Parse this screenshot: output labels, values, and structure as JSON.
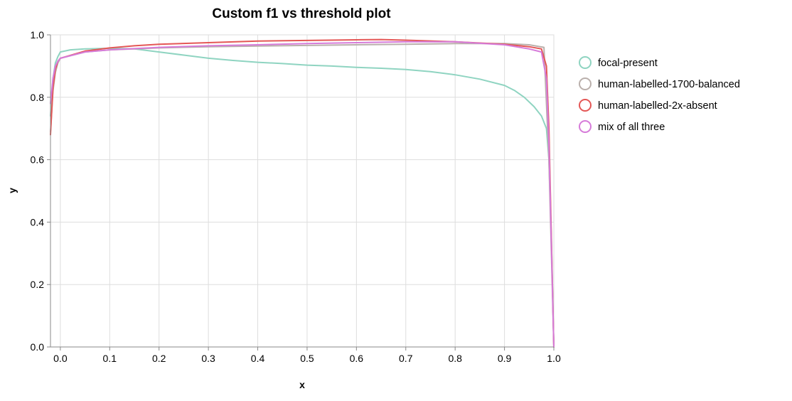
{
  "chart_data": {
    "type": "line",
    "title": "Custom f1 vs threshold plot",
    "xlabel": "x",
    "ylabel": "y",
    "xlim": [
      -0.02,
      1.0
    ],
    "ylim": [
      0.0,
      1.0
    ],
    "x_ticks": [
      "0.0",
      "0.1",
      "0.2",
      "0.3",
      "0.4",
      "0.5",
      "0.6",
      "0.7",
      "0.8",
      "0.9",
      "1.0"
    ],
    "y_ticks": [
      "0.0",
      "0.2",
      "0.4",
      "0.6",
      "0.8",
      "1.0"
    ],
    "grid": true,
    "legend_position": "right",
    "series": [
      {
        "name": "focal-present",
        "color": "#8fd4c1",
        "x": [
          -0.02,
          -0.015,
          -0.01,
          -0.005,
          0.0,
          0.02,
          0.05,
          0.1,
          0.15,
          0.2,
          0.25,
          0.3,
          0.35,
          0.4,
          0.45,
          0.5,
          0.55,
          0.6,
          0.65,
          0.7,
          0.75,
          0.8,
          0.85,
          0.9,
          0.92,
          0.94,
          0.96,
          0.975,
          0.985,
          0.99,
          0.995,
          1.0
        ],
        "y": [
          0.74,
          0.86,
          0.91,
          0.93,
          0.945,
          0.952,
          0.955,
          0.957,
          0.955,
          0.945,
          0.935,
          0.925,
          0.918,
          0.912,
          0.908,
          0.903,
          0.9,
          0.896,
          0.893,
          0.889,
          0.882,
          0.872,
          0.858,
          0.838,
          0.822,
          0.8,
          0.77,
          0.74,
          0.7,
          0.6,
          0.35,
          0.0
        ]
      },
      {
        "name": "human-labelled-1700-balanced",
        "color": "#bab0ac",
        "x": [
          -0.02,
          -0.015,
          -0.01,
          -0.005,
          0.0,
          0.05,
          0.1,
          0.2,
          0.3,
          0.4,
          0.5,
          0.6,
          0.7,
          0.8,
          0.9,
          0.95,
          0.98,
          0.99,
          1.0
        ],
        "y": [
          0.69,
          0.82,
          0.88,
          0.91,
          0.925,
          0.945,
          0.952,
          0.958,
          0.962,
          0.964,
          0.966,
          0.968,
          0.97,
          0.972,
          0.972,
          0.968,
          0.96,
          0.6,
          0.0
        ]
      },
      {
        "name": "human-labelled-2x-absent",
        "color": "#e45756",
        "x": [
          -0.02,
          -0.015,
          -0.01,
          -0.005,
          0.0,
          0.05,
          0.1,
          0.15,
          0.2,
          0.3,
          0.4,
          0.5,
          0.6,
          0.65,
          0.7,
          0.8,
          0.9,
          0.95,
          0.975,
          0.985,
          0.99,
          1.0
        ],
        "y": [
          0.68,
          0.83,
          0.89,
          0.915,
          0.925,
          0.948,
          0.958,
          0.965,
          0.97,
          0.975,
          0.98,
          0.982,
          0.984,
          0.985,
          0.983,
          0.978,
          0.97,
          0.962,
          0.955,
          0.9,
          0.7,
          0.0
        ]
      },
      {
        "name": "mix of all three",
        "color": "#d67bd9",
        "x": [
          -0.02,
          -0.015,
          -0.01,
          -0.005,
          0.0,
          0.05,
          0.1,
          0.2,
          0.3,
          0.4,
          0.5,
          0.6,
          0.7,
          0.8,
          0.9,
          0.95,
          0.975,
          0.985,
          0.99,
          1.0
        ],
        "y": [
          0.78,
          0.86,
          0.9,
          0.915,
          0.925,
          0.945,
          0.952,
          0.96,
          0.965,
          0.968,
          0.972,
          0.975,
          0.978,
          0.978,
          0.968,
          0.955,
          0.945,
          0.86,
          0.65,
          0.0
        ]
      }
    ]
  }
}
